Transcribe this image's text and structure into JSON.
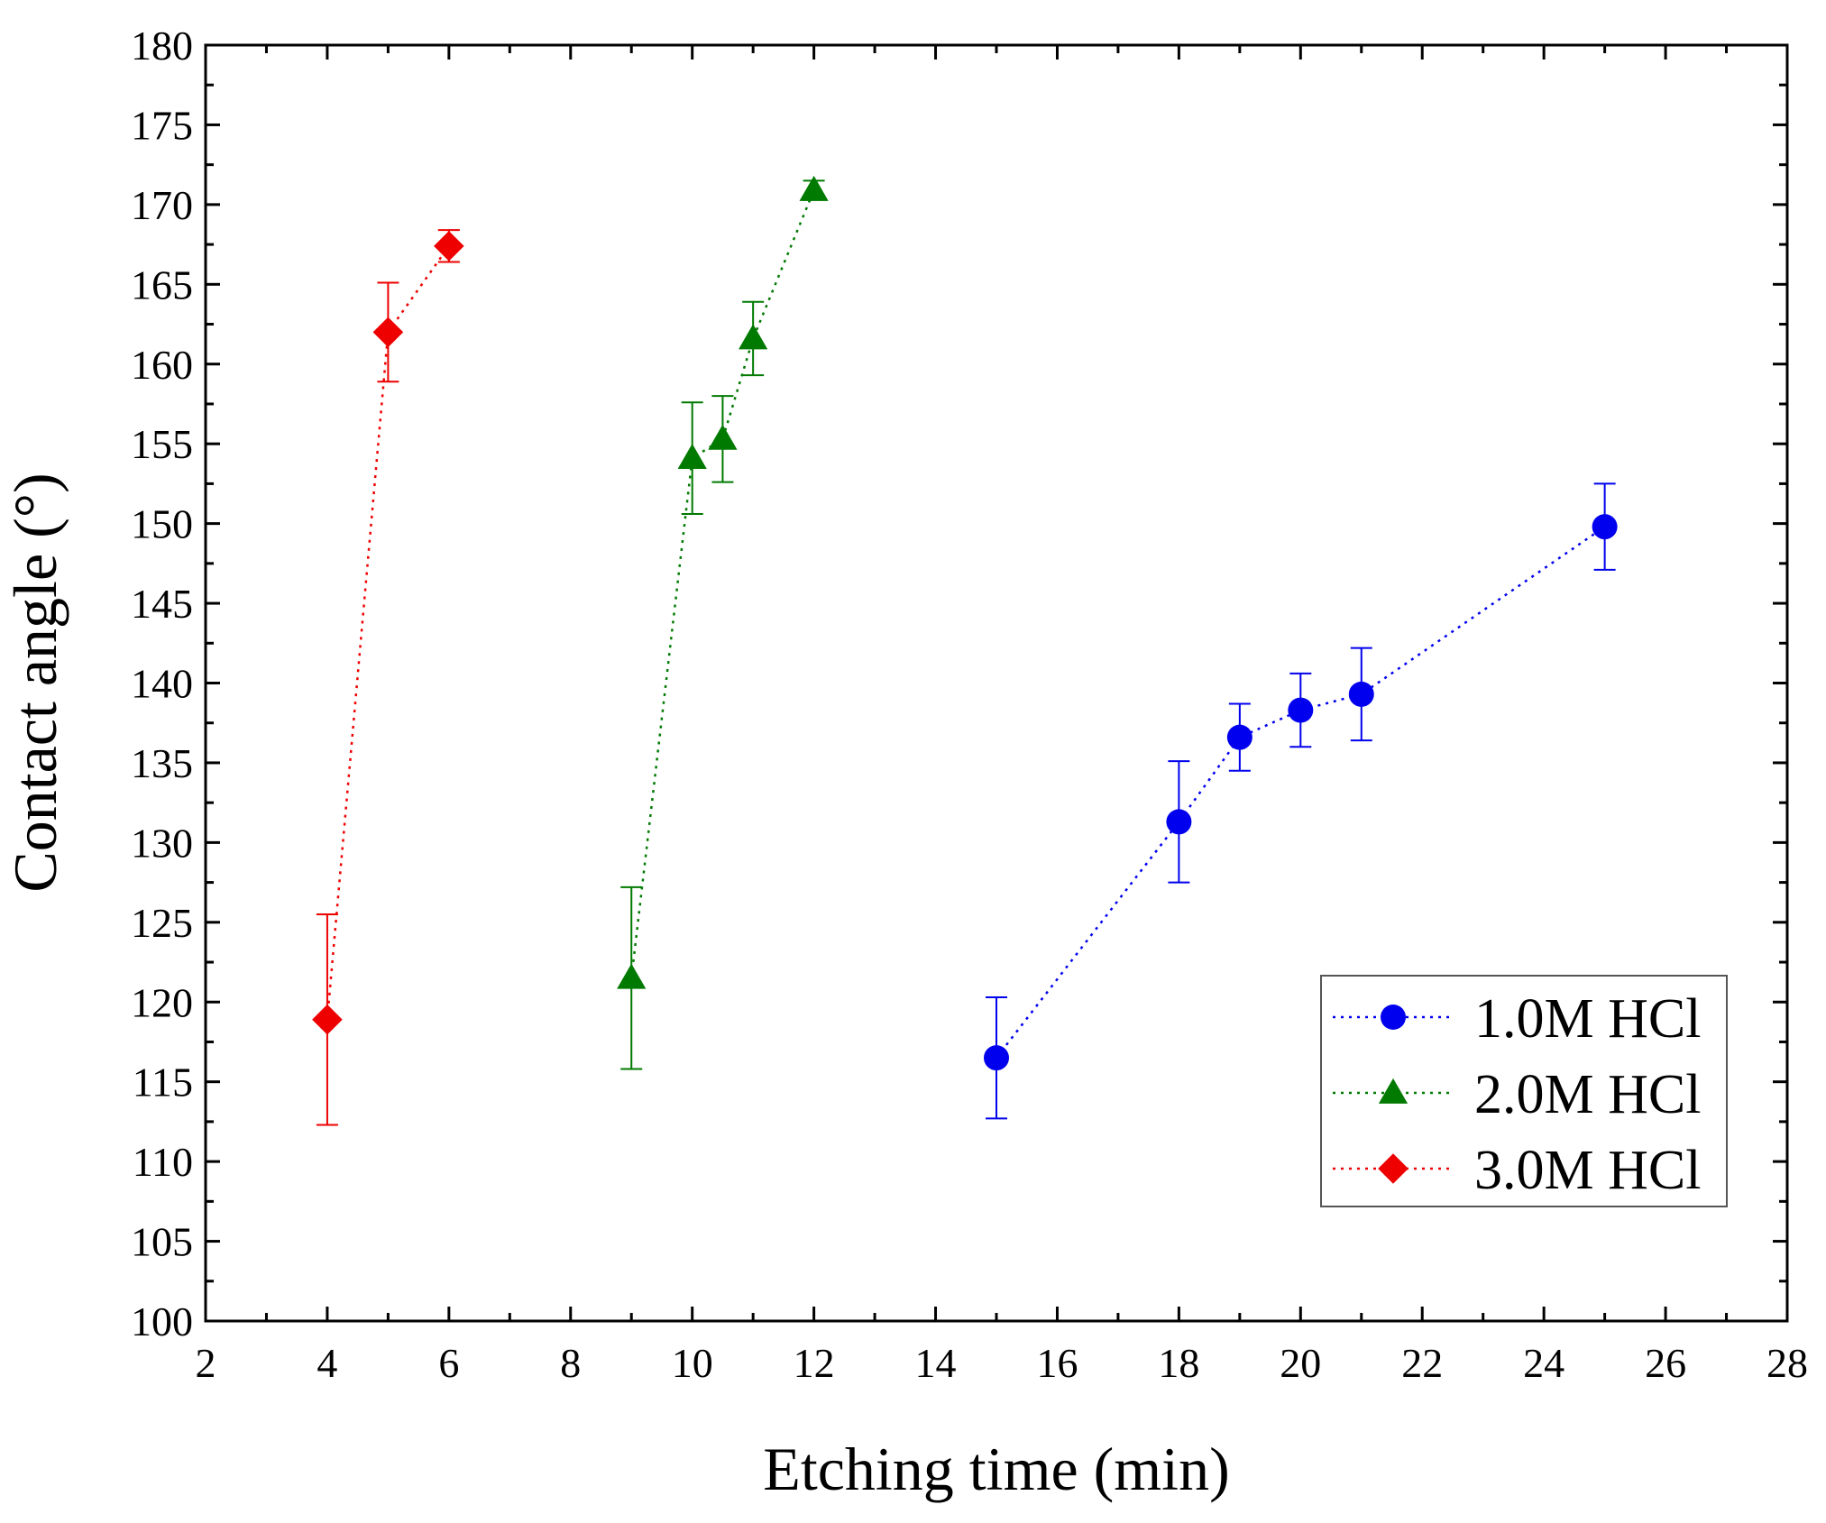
{
  "chart_data": {
    "type": "scatter",
    "xlabel": "Etching time (min)",
    "ylabel": "Contact angle (°)",
    "xlim": [
      2,
      28
    ],
    "ylim": [
      100,
      180
    ],
    "xticks": [
      2,
      4,
      6,
      8,
      10,
      12,
      14,
      16,
      18,
      20,
      22,
      24,
      26,
      28
    ],
    "yticks": [
      100,
      105,
      110,
      115,
      120,
      125,
      130,
      135,
      140,
      145,
      150,
      155,
      160,
      165,
      170,
      175,
      180
    ],
    "grid": false,
    "legend_position": "bottom-right",
    "series": [
      {
        "name": "1.0M HCl",
        "color": "#0000ee",
        "marker": "circle",
        "line": "dotted",
        "x": [
          15,
          18,
          19,
          20,
          21,
          25
        ],
        "y": [
          116.5,
          131.3,
          136.6,
          138.3,
          139.3,
          149.8
        ],
        "err": [
          3.8,
          3.8,
          2.1,
          2.3,
          2.9,
          2.7
        ]
      },
      {
        "name": "2.0M HCl",
        "color": "#007a00",
        "marker": "triangle",
        "line": "dotted",
        "x": [
          9,
          10,
          10.5,
          11,
          12
        ],
        "y": [
          121.5,
          154.1,
          155.3,
          161.6,
          170.9
        ],
        "err": [
          5.7,
          3.5,
          2.7,
          2.3,
          0.6
        ]
      },
      {
        "name": "3.0M HCl",
        "color": "#ee0000",
        "marker": "diamond",
        "line": "dotted",
        "x": [
          4,
          5,
          6
        ],
        "y": [
          118.9,
          162.0,
          167.4
        ],
        "err": [
          6.6,
          3.1,
          1.0
        ]
      }
    ]
  }
}
